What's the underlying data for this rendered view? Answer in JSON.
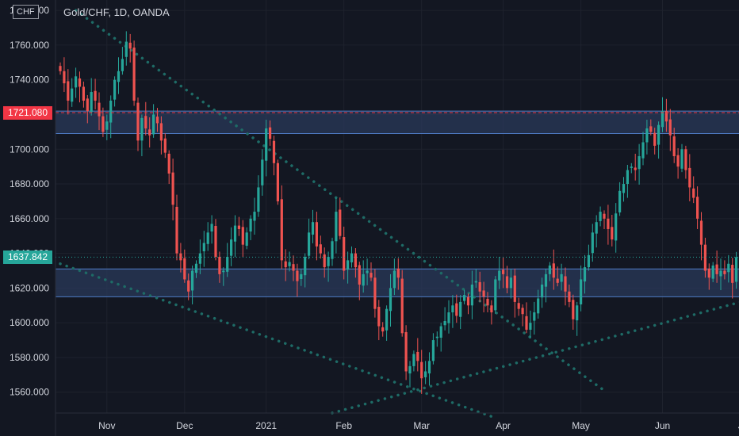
{
  "header": {
    "currency_tag": "CHF",
    "title": "Gold/CHF, 1D, OANDA"
  },
  "price_tags": {
    "resistance": {
      "label": "1721.080",
      "value": 1721.08,
      "color": "#f23645"
    },
    "current": {
      "label": "1637.842",
      "value": 1637.842,
      "color": "#26a69a"
    }
  },
  "colors": {
    "background": "#131722",
    "up_candle": "#26a69a",
    "down_candle": "#ef5350",
    "zone_fill": "#2a3a59",
    "zone_border": "#4f7cc7",
    "trendline": "#1e6b66",
    "axis_text": "#d1d4dc",
    "resistance_line": "#f23645"
  },
  "chart_data": {
    "type": "candlestick",
    "symbol": "Gold/CHF",
    "interval": "1D",
    "y_axis": {
      "range": [
        1548,
        1786
      ],
      "ticks": [
        "1780.000",
        "1760.000",
        "1740.000",
        "1720.000",
        "1700.000",
        "1680.000",
        "1660.000",
        "1640.000",
        "1620.000",
        "1600.000",
        "1580.000",
        "1560.000"
      ],
      "tick_values": [
        1780,
        1760,
        1740,
        1720,
        1700,
        1680,
        1660,
        1640,
        1620,
        1600,
        1580,
        1560
      ]
    },
    "x_axis": {
      "labels": [
        "Nov",
        "Dec",
        "2021",
        "Feb",
        "Mar",
        "Apr",
        "May",
        "Jun",
        "Jul"
      ],
      "label_bar_index": [
        12,
        32,
        53,
        73,
        93,
        114,
        134,
        155,
        176
      ]
    },
    "zones": [
      {
        "name": "resistance zone",
        "top": 1722,
        "bottom": 1709
      },
      {
        "name": "support zone",
        "top": 1631,
        "bottom": 1615
      }
    ],
    "horizontal_lines": [
      {
        "value": 1721.08,
        "style": "dashed",
        "color": "#f23645"
      },
      {
        "value": 1637.842,
        "style": "dotted",
        "color": "#26a69a"
      }
    ],
    "trendlines": [
      {
        "start": [
          4,
          1780
        ],
        "end": [
          140,
          1561
        ]
      },
      {
        "start": [
          0,
          1634
        ],
        "end": [
          111,
          1546
        ]
      },
      {
        "start": [
          70,
          1548
        ],
        "end": [
          185,
          1618
        ]
      }
    ],
    "closes": [
      1745,
      1738,
      1728,
      1735,
      1742,
      1736,
      1728,
      1722,
      1733,
      1728,
      1719,
      1710,
      1716,
      1728,
      1740,
      1745,
      1752,
      1762,
      1758,
      1728,
      1705,
      1718,
      1712,
      1708,
      1720,
      1715,
      1705,
      1698,
      1686,
      1668,
      1640,
      1636,
      1625,
      1618,
      1630,
      1634,
      1640,
      1646,
      1652,
      1657,
      1638,
      1628,
      1630,
      1638,
      1648,
      1656,
      1654,
      1645,
      1652,
      1660,
      1664,
      1678,
      1694,
      1712,
      1706,
      1692,
      1670,
      1636,
      1632,
      1635,
      1630,
      1624,
      1628,
      1638,
      1652,
      1658,
      1644,
      1640,
      1632,
      1638,
      1647,
      1664,
      1650,
      1630,
      1636,
      1640,
      1632,
      1622,
      1628,
      1630,
      1626,
      1608,
      1598,
      1595,
      1608,
      1620,
      1630,
      1626,
      1594,
      1572,
      1575,
      1582,
      1578,
      1568,
      1572,
      1578,
      1590,
      1592,
      1598,
      1601,
      1606,
      1610,
      1604,
      1612,
      1616,
      1610,
      1622,
      1624,
      1618,
      1615,
      1610,
      1606,
      1625,
      1630,
      1628,
      1620,
      1626,
      1612,
      1608,
      1605,
      1596,
      1600,
      1606,
      1614,
      1622,
      1628,
      1633,
      1626,
      1623,
      1628,
      1618,
      1612,
      1602,
      1610,
      1625,
      1632,
      1639,
      1652,
      1658,
      1664,
      1660,
      1654,
      1648,
      1663,
      1676,
      1680,
      1688,
      1690,
      1688,
      1696,
      1704,
      1712,
      1710,
      1702,
      1714,
      1722,
      1716,
      1708,
      1696,
      1690,
      1700,
      1688,
      1678,
      1672,
      1660,
      1645,
      1630,
      1626,
      1633,
      1628,
      1630,
      1628,
      1634,
      1623,
      1637.842
    ]
  }
}
